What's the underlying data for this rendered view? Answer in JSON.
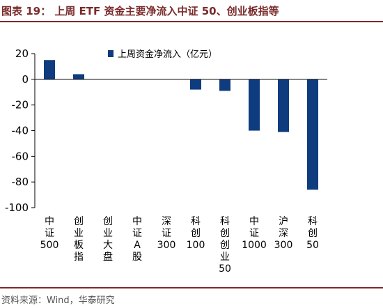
{
  "header": {
    "title": "图表 19：  上周 ETF 资金主要净流入中证 50、创业板指等"
  },
  "footer": {
    "source": "资料来源：Wind，华泰研究"
  },
  "chart_data": {
    "type": "bar",
    "title": "",
    "xlabel": "",
    "ylabel": "",
    "ylim": [
      -100,
      20
    ],
    "yticks": [
      20,
      0,
      -20,
      -40,
      -60,
      -80,
      -100
    ],
    "legend_position": "top-center",
    "grid": false,
    "bar_color": "#0e3c7e",
    "categories": [
      "中证500",
      "创业板指",
      "创业大盘",
      "中证A股",
      "深证300",
      "科创100",
      "科创创业50",
      "中证1000",
      "沪深300",
      "科创50"
    ],
    "series": [
      {
        "name": "上周资金净流入（亿元）",
        "values": [
          15,
          4,
          0,
          0,
          0,
          -8,
          -9,
          -40,
          -41,
          -86
        ]
      }
    ]
  }
}
